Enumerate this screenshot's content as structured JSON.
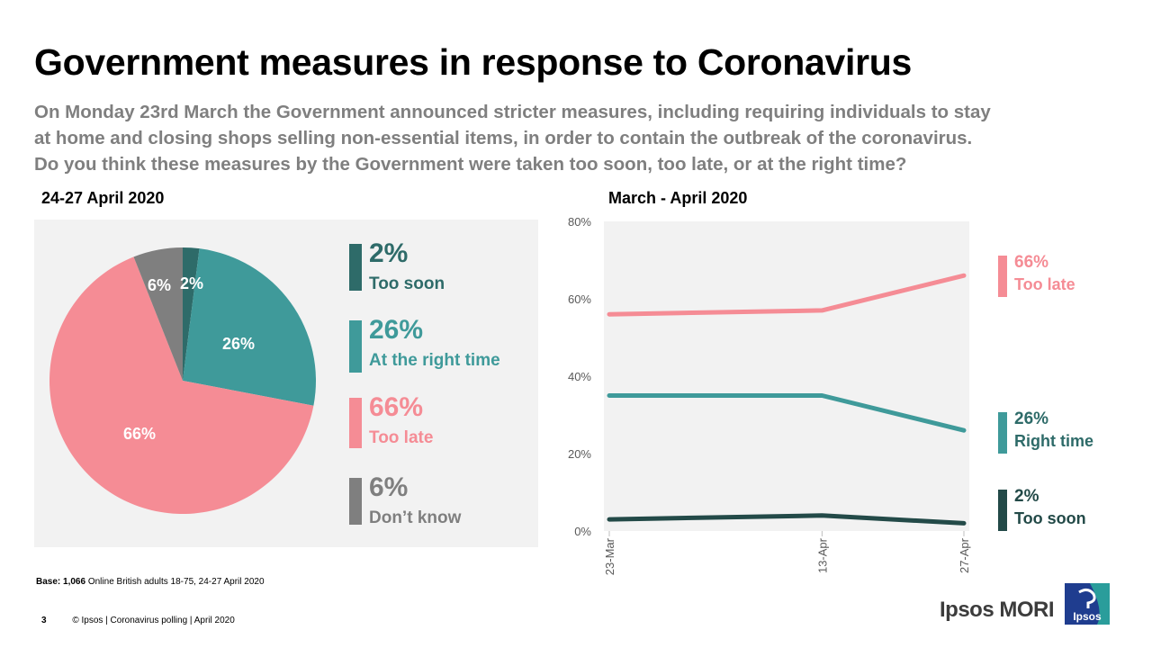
{
  "header": {
    "title": "Government measures in response to Coronavirus",
    "subtitle_lines": [
      "On Monday 23rd March the Government announced stricter measures, including requiring individuals to stay",
      "at home and closing shops selling non-essential items, in order to contain the outbreak of the coronavirus.",
      "Do you think these measures by the Government were taken too soon, too late, or at the right time?"
    ]
  },
  "colors": {
    "too_soon": "#2e6b69",
    "right_time": "#3f9a9a",
    "too_late": "#f58c95",
    "dont_know": "#7f7f7f",
    "line_too_soon": "#234a48",
    "label_too_soon_line": "#234a48",
    "panel_bg": "#f2f2f2"
  },
  "chart_data": [
    {
      "type": "pie",
      "title": "24-27 April 2020",
      "slices": [
        {
          "key": "too_soon",
          "label": "Too soon",
          "value": 2,
          "display": "2%"
        },
        {
          "key": "right_time",
          "label": "At the right time",
          "value": 26,
          "display": "26%"
        },
        {
          "key": "too_late",
          "label": "Too late",
          "value": 66,
          "display": "66%"
        },
        {
          "key": "dont_know",
          "label": "Don’t know",
          "value": 6,
          "display": "6%"
        }
      ]
    },
    {
      "type": "line",
      "title": "March - April 2020",
      "x": [
        "23-Mar",
        "13-Apr",
        "27-Apr"
      ],
      "x_days": [
        0,
        21,
        35
      ],
      "ylim": [
        0,
        80
      ],
      "y_ticks": [
        "0%",
        "20%",
        "40%",
        "60%",
        "80%"
      ],
      "y_tick_values": [
        0,
        20,
        40,
        60,
        80
      ],
      "series": [
        {
          "key": "too_late",
          "name": "Too late",
          "values": [
            56,
            57,
            66
          ],
          "end_label": "66%"
        },
        {
          "key": "right_time",
          "name": "Right time",
          "values": [
            35,
            35,
            26
          ],
          "end_label": "26%"
        },
        {
          "key": "too_soon",
          "name": "Too soon",
          "values": [
            3,
            4,
            2
          ],
          "end_label": "2%"
        }
      ]
    }
  ],
  "footer": {
    "base_label": "Base:",
    "base_count": "1,066",
    "base_text": "Online British adults 18-75,  24-27 April 2020",
    "page_number": "3",
    "copyright": "© Ipsos | Coronavirus polling | April 2020",
    "brand": "Ipsos MORI",
    "logo_text": "Ipsos"
  }
}
